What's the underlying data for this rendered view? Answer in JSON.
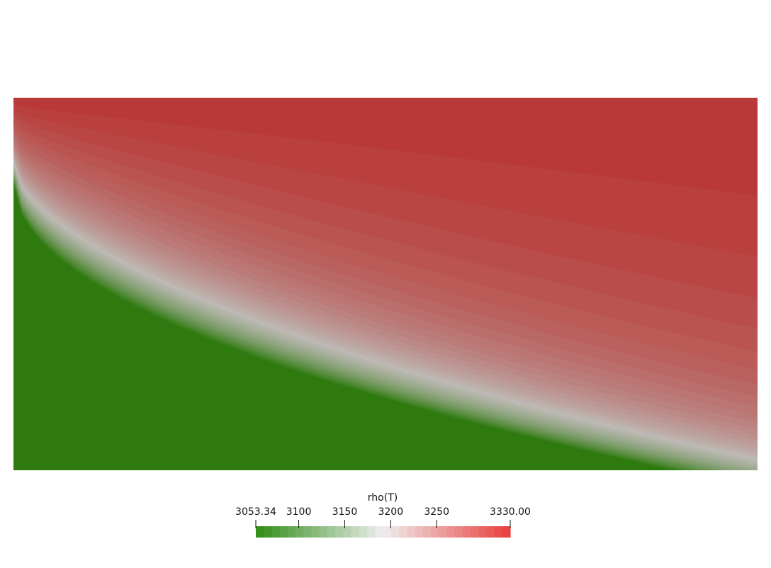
{
  "scalar_field": {
    "name": "rho(T)",
    "range": [
      3053.34,
      3330.0
    ],
    "color_low": "#2e7a0e",
    "color_mid": "#bdb9b5",
    "color_high": "#b83230",
    "contour_band_count": 40
  },
  "colorbar": {
    "title": "rho(T)",
    "min_label": "3053.34",
    "max_label": "3330.00",
    "ticks": [
      {
        "value": 3100,
        "label": "3100"
      },
      {
        "value": 3150,
        "label": "3150"
      },
      {
        "value": 3200,
        "label": "3200"
      },
      {
        "value": 3250,
        "label": "3250"
      }
    ],
    "color_low": "#2f8c14",
    "color_mid": "#eeeeee",
    "color_high": "#e83e3c",
    "band_count": 32
  }
}
